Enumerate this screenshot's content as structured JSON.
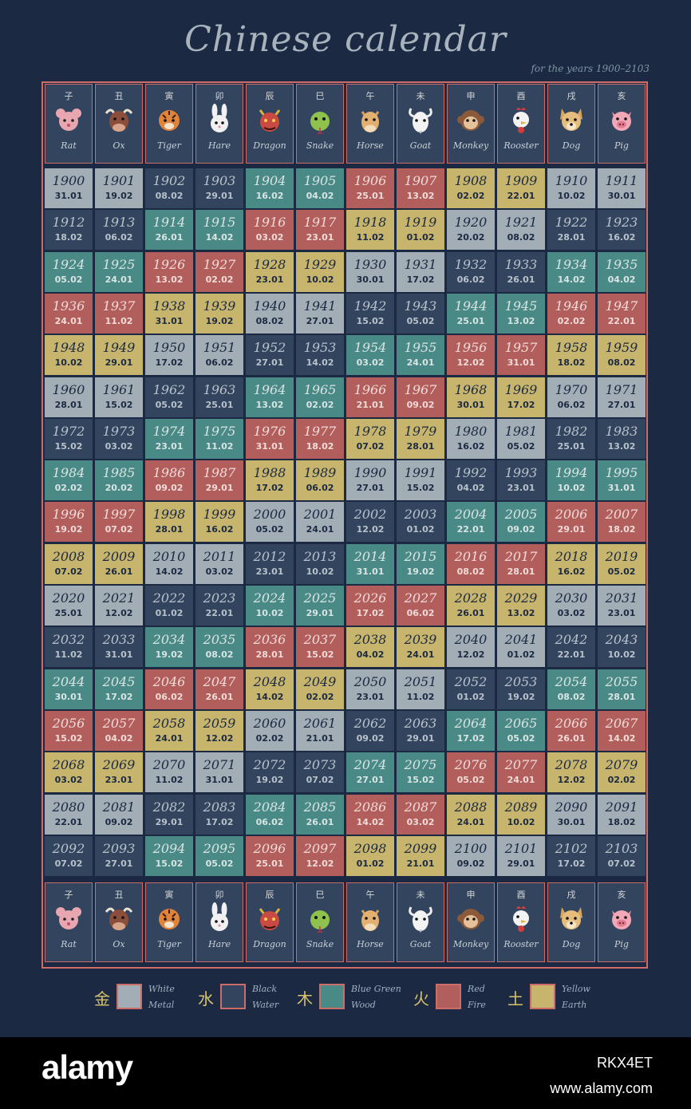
{
  "title": "Chinese calendar",
  "subtitle": "for the years 1900–2103",
  "colors": {
    "background": "#1b2942",
    "frame": "#cc6d6a",
    "White": {
      "bg": "#a3adb6",
      "fg": "#1b2942"
    },
    "Black": {
      "bg": "#33455e",
      "fg": "#b9c2cb"
    },
    "Blue Green": {
      "bg": "#4a8a86",
      "fg": "#d9e4e4"
    },
    "Red": {
      "bg": "#b25e5c",
      "fg": "#f1dcd8"
    },
    "Yellow": {
      "bg": "#c7b56d",
      "fg": "#1b2942"
    }
  },
  "animals": [
    {
      "char": "子",
      "name": "Rat",
      "icon": "rat-icon"
    },
    {
      "char": "丑",
      "name": "Ox",
      "icon": "ox-icon"
    },
    {
      "char": "寅",
      "name": "Tiger",
      "icon": "tiger-icon"
    },
    {
      "char": "卯",
      "name": "Hare",
      "icon": "hare-icon"
    },
    {
      "char": "辰",
      "name": "Dragon",
      "icon": "dragon-icon"
    },
    {
      "char": "巳",
      "name": "Snake",
      "icon": "snake-icon"
    },
    {
      "char": "午",
      "name": "Horse",
      "icon": "horse-icon"
    },
    {
      "char": "未",
      "name": "Goat",
      "icon": "goat-icon"
    },
    {
      "char": "申",
      "name": "Monkey",
      "icon": "monkey-icon"
    },
    {
      "char": "酉",
      "name": "Rooster",
      "icon": "rooster-icon"
    },
    {
      "char": "戌",
      "name": "Dog",
      "icon": "dog-icon"
    },
    {
      "char": "亥",
      "name": "Pig",
      "icon": "pig-icon"
    }
  ],
  "rows": [
    [
      {
        "y": "1900",
        "d": "31.01",
        "e": "White"
      },
      {
        "y": "1901",
        "d": "19.02",
        "e": "White"
      },
      {
        "y": "1902",
        "d": "08.02",
        "e": "Black"
      },
      {
        "y": "1903",
        "d": "29.01",
        "e": "Black"
      },
      {
        "y": "1904",
        "d": "16.02",
        "e": "Blue Green"
      },
      {
        "y": "1905",
        "d": "04.02",
        "e": "Blue Green"
      },
      {
        "y": "1906",
        "d": "25.01",
        "e": "Red"
      },
      {
        "y": "1907",
        "d": "13.02",
        "e": "Red"
      },
      {
        "y": "1908",
        "d": "02.02",
        "e": "Yellow"
      },
      {
        "y": "1909",
        "d": "22.01",
        "e": "Yellow"
      },
      {
        "y": "1910",
        "d": "10.02",
        "e": "White"
      },
      {
        "y": "1911",
        "d": "30.01",
        "e": "White"
      }
    ],
    [
      {
        "y": "1912",
        "d": "18.02",
        "e": "Black"
      },
      {
        "y": "1913",
        "d": "06.02",
        "e": "Black"
      },
      {
        "y": "1914",
        "d": "26.01",
        "e": "Blue Green"
      },
      {
        "y": "1915",
        "d": "14.02",
        "e": "Blue Green"
      },
      {
        "y": "1916",
        "d": "03.02",
        "e": "Red"
      },
      {
        "y": "1917",
        "d": "23.01",
        "e": "Red"
      },
      {
        "y": "1918",
        "d": "11.02",
        "e": "Yellow"
      },
      {
        "y": "1919",
        "d": "01.02",
        "e": "Yellow"
      },
      {
        "y": "1920",
        "d": "20.02",
        "e": "White"
      },
      {
        "y": "1921",
        "d": "08.02",
        "e": "White"
      },
      {
        "y": "1922",
        "d": "28.01",
        "e": "Black"
      },
      {
        "y": "1923",
        "d": "16.02",
        "e": "Black"
      }
    ],
    [
      {
        "y": "1924",
        "d": "05.02",
        "e": "Blue Green"
      },
      {
        "y": "1925",
        "d": "24.01",
        "e": "Blue Green"
      },
      {
        "y": "1926",
        "d": "13.02",
        "e": "Red"
      },
      {
        "y": "1927",
        "d": "02.02",
        "e": "Red"
      },
      {
        "y": "1928",
        "d": "23.01",
        "e": "Yellow"
      },
      {
        "y": "1929",
        "d": "10.02",
        "e": "Yellow"
      },
      {
        "y": "1930",
        "d": "30.01",
        "e": "White"
      },
      {
        "y": "1931",
        "d": "17.02",
        "e": "White"
      },
      {
        "y": "1932",
        "d": "06.02",
        "e": "Black"
      },
      {
        "y": "1933",
        "d": "26.01",
        "e": "Black"
      },
      {
        "y": "1934",
        "d": "14.02",
        "e": "Blue Green"
      },
      {
        "y": "1935",
        "d": "04.02",
        "e": "Blue Green"
      }
    ],
    [
      {
        "y": "1936",
        "d": "24.01",
        "e": "Red"
      },
      {
        "y": "1937",
        "d": "11.02",
        "e": "Red"
      },
      {
        "y": "1938",
        "d": "31.01",
        "e": "Yellow"
      },
      {
        "y": "1939",
        "d": "19.02",
        "e": "Yellow"
      },
      {
        "y": "1940",
        "d": "08.02",
        "e": "White"
      },
      {
        "y": "1941",
        "d": "27.01",
        "e": "White"
      },
      {
        "y": "1942",
        "d": "15.02",
        "e": "Black"
      },
      {
        "y": "1943",
        "d": "05.02",
        "e": "Black"
      },
      {
        "y": "1944",
        "d": "25.01",
        "e": "Blue Green"
      },
      {
        "y": "1945",
        "d": "13.02",
        "e": "Blue Green"
      },
      {
        "y": "1946",
        "d": "02.02",
        "e": "Red"
      },
      {
        "y": "1947",
        "d": "22.01",
        "e": "Red"
      }
    ],
    [
      {
        "y": "1948",
        "d": "10.02",
        "e": "Yellow"
      },
      {
        "y": "1949",
        "d": "29.01",
        "e": "Yellow"
      },
      {
        "y": "1950",
        "d": "17.02",
        "e": "White"
      },
      {
        "y": "1951",
        "d": "06.02",
        "e": "White"
      },
      {
        "y": "1952",
        "d": "27.01",
        "e": "Black"
      },
      {
        "y": "1953",
        "d": "14.02",
        "e": "Black"
      },
      {
        "y": "1954",
        "d": "03.02",
        "e": "Blue Green"
      },
      {
        "y": "1955",
        "d": "24.01",
        "e": "Blue Green"
      },
      {
        "y": "1956",
        "d": "12.02",
        "e": "Red"
      },
      {
        "y": "1957",
        "d": "31.01",
        "e": "Red"
      },
      {
        "y": "1958",
        "d": "18.02",
        "e": "Yellow"
      },
      {
        "y": "1959",
        "d": "08.02",
        "e": "Yellow"
      }
    ],
    [
      {
        "y": "1960",
        "d": "28.01",
        "e": "White"
      },
      {
        "y": "1961",
        "d": "15.02",
        "e": "White"
      },
      {
        "y": "1962",
        "d": "05.02",
        "e": "Black"
      },
      {
        "y": "1963",
        "d": "25.01",
        "e": "Black"
      },
      {
        "y": "1964",
        "d": "13.02",
        "e": "Blue Green"
      },
      {
        "y": "1965",
        "d": "02.02",
        "e": "Blue Green"
      },
      {
        "y": "1966",
        "d": "21.01",
        "e": "Red"
      },
      {
        "y": "1967",
        "d": "09.02",
        "e": "Red"
      },
      {
        "y": "1968",
        "d": "30.01",
        "e": "Yellow"
      },
      {
        "y": "1969",
        "d": "17.02",
        "e": "Yellow"
      },
      {
        "y": "1970",
        "d": "06.02",
        "e": "White"
      },
      {
        "y": "1971",
        "d": "27.01",
        "e": "White"
      }
    ],
    [
      {
        "y": "1972",
        "d": "15.02",
        "e": "Black"
      },
      {
        "y": "1973",
        "d": "03.02",
        "e": "Black"
      },
      {
        "y": "1974",
        "d": "23.01",
        "e": "Blue Green"
      },
      {
        "y": "1975",
        "d": "11.02",
        "e": "Blue Green"
      },
      {
        "y": "1976",
        "d": "31.01",
        "e": "Red"
      },
      {
        "y": "1977",
        "d": "18.02",
        "e": "Red"
      },
      {
        "y": "1978",
        "d": "07.02",
        "e": "Yellow"
      },
      {
        "y": "1979",
        "d": "28.01",
        "e": "Yellow"
      },
      {
        "y": "1980",
        "d": "16.02",
        "e": "White"
      },
      {
        "y": "1981",
        "d": "05.02",
        "e": "White"
      },
      {
        "y": "1982",
        "d": "25.01",
        "e": "Black"
      },
      {
        "y": "1983",
        "d": "13.02",
        "e": "Black"
      }
    ],
    [
      {
        "y": "1984",
        "d": "02.02",
        "e": "Blue Green"
      },
      {
        "y": "1985",
        "d": "20.02",
        "e": "Blue Green"
      },
      {
        "y": "1986",
        "d": "09.02",
        "e": "Red"
      },
      {
        "y": "1987",
        "d": "29.01",
        "e": "Red"
      },
      {
        "y": "1988",
        "d": "17.02",
        "e": "Yellow"
      },
      {
        "y": "1989",
        "d": "06.02",
        "e": "Yellow"
      },
      {
        "y": "1990",
        "d": "27.01",
        "e": "White"
      },
      {
        "y": "1991",
        "d": "15.02",
        "e": "White"
      },
      {
        "y": "1992",
        "d": "04.02",
        "e": "Black"
      },
      {
        "y": "1993",
        "d": "23.01",
        "e": "Black"
      },
      {
        "y": "1994",
        "d": "10.02",
        "e": "Blue Green"
      },
      {
        "y": "1995",
        "d": "31.01",
        "e": "Blue Green"
      }
    ],
    [
      {
        "y": "1996",
        "d": "19.02",
        "e": "Red"
      },
      {
        "y": "1997",
        "d": "07.02",
        "e": "Red"
      },
      {
        "y": "1998",
        "d": "28.01",
        "e": "Yellow"
      },
      {
        "y": "1999",
        "d": "16.02",
        "e": "Yellow"
      },
      {
        "y": "2000",
        "d": "05.02",
        "e": "White"
      },
      {
        "y": "2001",
        "d": "24.01",
        "e": "White"
      },
      {
        "y": "2002",
        "d": "12.02",
        "e": "Black"
      },
      {
        "y": "2003",
        "d": "01.02",
        "e": "Black"
      },
      {
        "y": "2004",
        "d": "22.01",
        "e": "Blue Green"
      },
      {
        "y": "2005",
        "d": "09.02",
        "e": "Blue Green"
      },
      {
        "y": "2006",
        "d": "29.01",
        "e": "Red"
      },
      {
        "y": "2007",
        "d": "18.02",
        "e": "Red"
      }
    ],
    [
      {
        "y": "2008",
        "d": "07.02",
        "e": "Yellow"
      },
      {
        "y": "2009",
        "d": "26.01",
        "e": "Yellow"
      },
      {
        "y": "2010",
        "d": "14.02",
        "e": "White"
      },
      {
        "y": "2011",
        "d": "03.02",
        "e": "White"
      },
      {
        "y": "2012",
        "d": "23.01",
        "e": "Black"
      },
      {
        "y": "2013",
        "d": "10.02",
        "e": "Black"
      },
      {
        "y": "2014",
        "d": "31.01",
        "e": "Blue Green"
      },
      {
        "y": "2015",
        "d": "19.02",
        "e": "Blue Green"
      },
      {
        "y": "2016",
        "d": "08.02",
        "e": "Red"
      },
      {
        "y": "2017",
        "d": "28.01",
        "e": "Red"
      },
      {
        "y": "2018",
        "d": "16.02",
        "e": "Yellow"
      },
      {
        "y": "2019",
        "d": "05.02",
        "e": "Yellow"
      }
    ],
    [
      {
        "y": "2020",
        "d": "25.01",
        "e": "White"
      },
      {
        "y": "2021",
        "d": "12.02",
        "e": "White"
      },
      {
        "y": "2022",
        "d": "01.02",
        "e": "Black"
      },
      {
        "y": "2023",
        "d": "22.01",
        "e": "Black"
      },
      {
        "y": "2024",
        "d": "10.02",
        "e": "Blue Green"
      },
      {
        "y": "2025",
        "d": "29.01",
        "e": "Blue Green"
      },
      {
        "y": "2026",
        "d": "17.02",
        "e": "Red"
      },
      {
        "y": "2027",
        "d": "06.02",
        "e": "Red"
      },
      {
        "y": "2028",
        "d": "26.01",
        "e": "Yellow"
      },
      {
        "y": "2029",
        "d": "13.02",
        "e": "Yellow"
      },
      {
        "y": "2030",
        "d": "03.02",
        "e": "White"
      },
      {
        "y": "2031",
        "d": "23.01",
        "e": "White"
      }
    ],
    [
      {
        "y": "2032",
        "d": "11.02",
        "e": "Black"
      },
      {
        "y": "2033",
        "d": "31.01",
        "e": "Black"
      },
      {
        "y": "2034",
        "d": "19.02",
        "e": "Blue Green"
      },
      {
        "y": "2035",
        "d": "08.02",
        "e": "Blue Green"
      },
      {
        "y": "2036",
        "d": "28.01",
        "e": "Red"
      },
      {
        "y": "2037",
        "d": "15.02",
        "e": "Red"
      },
      {
        "y": "2038",
        "d": "04.02",
        "e": "Yellow"
      },
      {
        "y": "2039",
        "d": "24.01",
        "e": "Yellow"
      },
      {
        "y": "2040",
        "d": "12.02",
        "e": "White"
      },
      {
        "y": "2041",
        "d": "01.02",
        "e": "White"
      },
      {
        "y": "2042",
        "d": "22.01",
        "e": "Black"
      },
      {
        "y": "2043",
        "d": "10.02",
        "e": "Black"
      }
    ],
    [
      {
        "y": "2044",
        "d": "30.01",
        "e": "Blue Green"
      },
      {
        "y": "2045",
        "d": "17.02",
        "e": "Blue Green"
      },
      {
        "y": "2046",
        "d": "06.02",
        "e": "Red"
      },
      {
        "y": "2047",
        "d": "26.01",
        "e": "Red"
      },
      {
        "y": "2048",
        "d": "14.02",
        "e": "Yellow"
      },
      {
        "y": "2049",
        "d": "02.02",
        "e": "Yellow"
      },
      {
        "y": "2050",
        "d": "23.01",
        "e": "White"
      },
      {
        "y": "2051",
        "d": "11.02",
        "e": "White"
      },
      {
        "y": "2052",
        "d": "01.02",
        "e": "Black"
      },
      {
        "y": "2053",
        "d": "19.02",
        "e": "Black"
      },
      {
        "y": "2054",
        "d": "08.02",
        "e": "Blue Green"
      },
      {
        "y": "2055",
        "d": "28.01",
        "e": "Blue Green"
      }
    ],
    [
      {
        "y": "2056",
        "d": "15.02",
        "e": "Red"
      },
      {
        "y": "2057",
        "d": "04.02",
        "e": "Red"
      },
      {
        "y": "2058",
        "d": "24.01",
        "e": "Yellow"
      },
      {
        "y": "2059",
        "d": "12.02",
        "e": "Yellow"
      },
      {
        "y": "2060",
        "d": "02.02",
        "e": "White"
      },
      {
        "y": "2061",
        "d": "21.01",
        "e": "White"
      },
      {
        "y": "2062",
        "d": "09.02",
        "e": "Black"
      },
      {
        "y": "2063",
        "d": "29.01",
        "e": "Black"
      },
      {
        "y": "2064",
        "d": "17.02",
        "e": "Blue Green"
      },
      {
        "y": "2065",
        "d": "05.02",
        "e": "Blue Green"
      },
      {
        "y": "2066",
        "d": "26.01",
        "e": "Red"
      },
      {
        "y": "2067",
        "d": "14.02",
        "e": "Red"
      }
    ],
    [
      {
        "y": "2068",
        "d": "03.02",
        "e": "Yellow"
      },
      {
        "y": "2069",
        "d": "23.01",
        "e": "Yellow"
      },
      {
        "y": "2070",
        "d": "11.02",
        "e": "White"
      },
      {
        "y": "2071",
        "d": "31.01",
        "e": "White"
      },
      {
        "y": "2072",
        "d": "19.02",
        "e": "Black"
      },
      {
        "y": "2073",
        "d": "07.02",
        "e": "Black"
      },
      {
        "y": "2074",
        "d": "27.01",
        "e": "Blue Green"
      },
      {
        "y": "2075",
        "d": "15.02",
        "e": "Blue Green"
      },
      {
        "y": "2076",
        "d": "05.02",
        "e": "Red"
      },
      {
        "y": "2077",
        "d": "24.01",
        "e": "Red"
      },
      {
        "y": "2078",
        "d": "12.02",
        "e": "Yellow"
      },
      {
        "y": "2079",
        "d": "02.02",
        "e": "Yellow"
      }
    ],
    [
      {
        "y": "2080",
        "d": "22.01",
        "e": "White"
      },
      {
        "y": "2081",
        "d": "09.02",
        "e": "White"
      },
      {
        "y": "2082",
        "d": "29.01",
        "e": "Black"
      },
      {
        "y": "2083",
        "d": "17.02",
        "e": "Black"
      },
      {
        "y": "2084",
        "d": "06.02",
        "e": "Blue Green"
      },
      {
        "y": "2085",
        "d": "26.01",
        "e": "Blue Green"
      },
      {
        "y": "2086",
        "d": "14.02",
        "e": "Red"
      },
      {
        "y": "2087",
        "d": "03.02",
        "e": "Red"
      },
      {
        "y": "2088",
        "d": "24.01",
        "e": "Yellow"
      },
      {
        "y": "2089",
        "d": "10.02",
        "e": "Yellow"
      },
      {
        "y": "2090",
        "d": "30.01",
        "e": "White"
      },
      {
        "y": "2091",
        "d": "18.02",
        "e": "White"
      }
    ],
    [
      {
        "y": "2092",
        "d": "07.02",
        "e": "Black"
      },
      {
        "y": "2093",
        "d": "27.01",
        "e": "Black"
      },
      {
        "y": "2094",
        "d": "15.02",
        "e": "Blue Green"
      },
      {
        "y": "2095",
        "d": "05.02",
        "e": "Blue Green"
      },
      {
        "y": "2096",
        "d": "25.01",
        "e": "Red"
      },
      {
        "y": "2097",
        "d": "12.02",
        "e": "Red"
      },
      {
        "y": "2098",
        "d": "01.02",
        "e": "Yellow"
      },
      {
        "y": "2099",
        "d": "21.01",
        "e": "Yellow"
      },
      {
        "y": "2100",
        "d": "09.02",
        "e": "White"
      },
      {
        "y": "2101",
        "d": "29.01",
        "e": "White"
      },
      {
        "y": "2102",
        "d": "17.02",
        "e": "Black"
      },
      {
        "y": "2103",
        "d": "07.02",
        "e": "Black"
      }
    ]
  ],
  "legend": [
    {
      "char": "金",
      "color": "White",
      "label1": "White",
      "label2": "Metal"
    },
    {
      "char": "水",
      "color": "Black",
      "label1": "Black",
      "label2": "Water"
    },
    {
      "char": "木",
      "color": "Blue Green",
      "label1": "Blue Green",
      "label2": "Wood"
    },
    {
      "char": "火",
      "color": "Red",
      "label1": "Red",
      "label2": "Fire"
    },
    {
      "char": "土",
      "color": "Yellow",
      "label1": "Yellow",
      "label2": "Earth"
    }
  ],
  "watermark": {
    "logo": "alamy",
    "image_id": "RKX4ET",
    "url": "www.alamy.com"
  }
}
